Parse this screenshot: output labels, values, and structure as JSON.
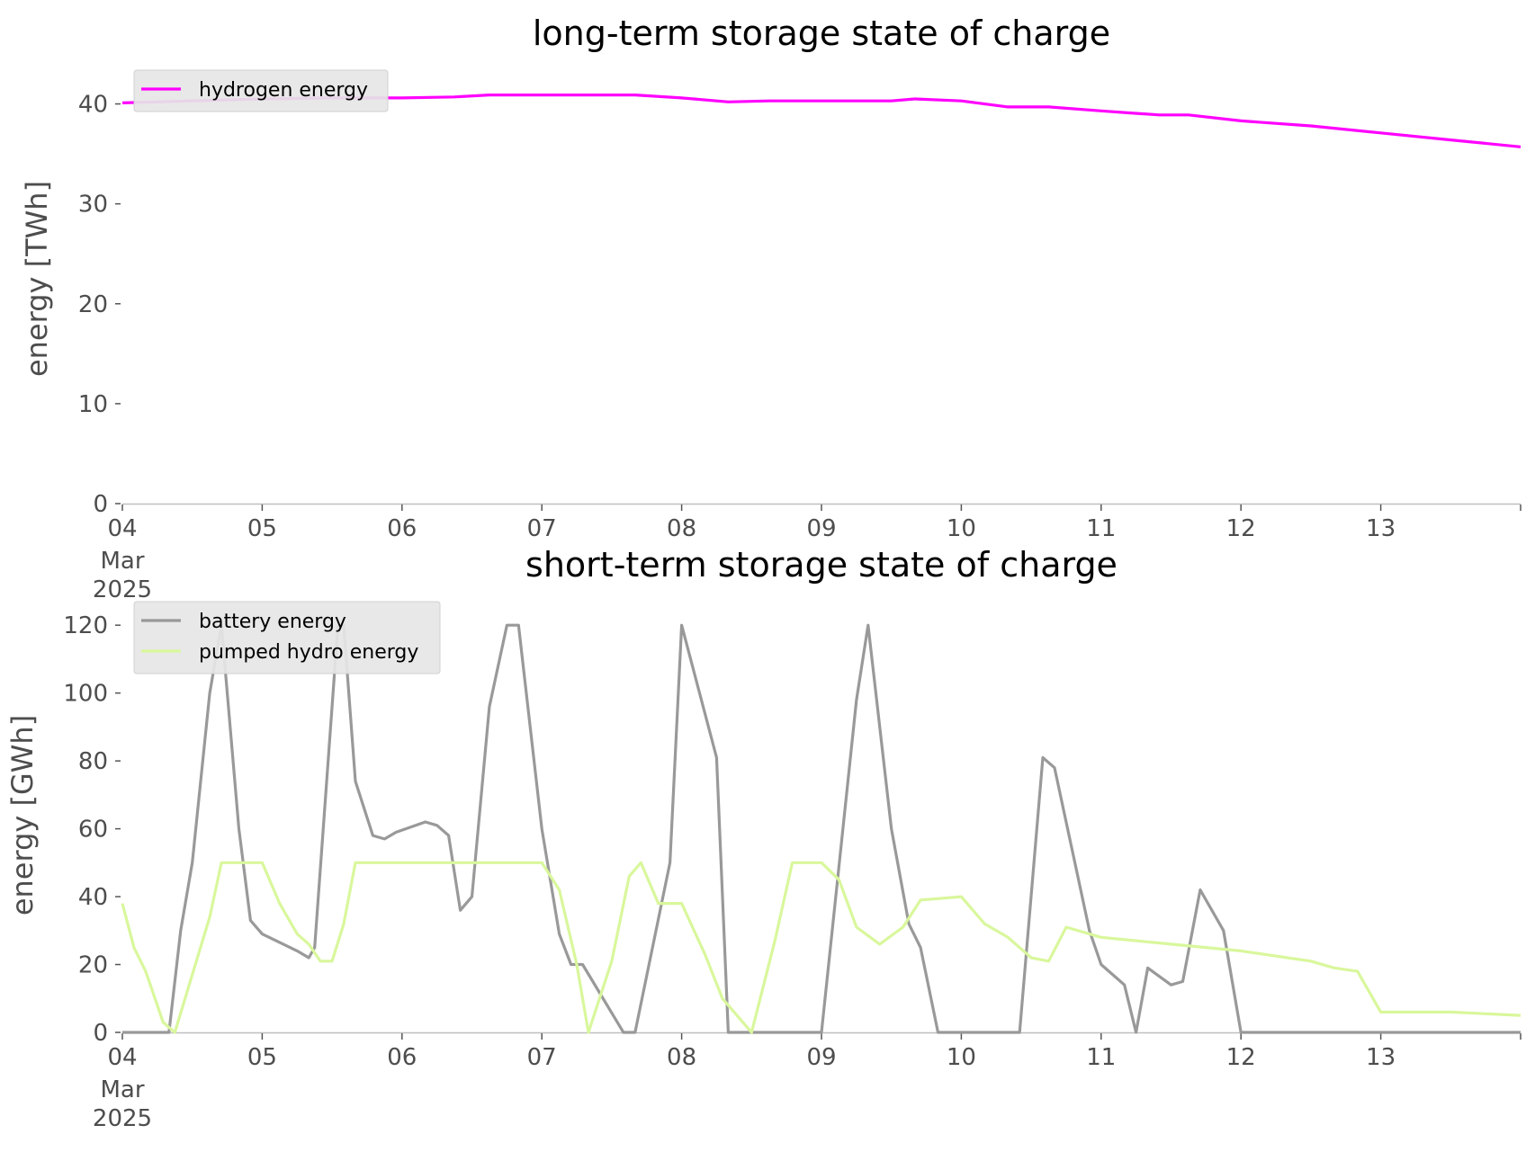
{
  "chart_data": [
    {
      "type": "line",
      "title": "long-term storage state of charge",
      "xlabel": "",
      "ylabel": "energy [TWh]",
      "ylim": [
        0,
        45
      ],
      "yticks": [
        0,
        10,
        20,
        30,
        40
      ],
      "xlim": [
        "2025-03-04",
        "2025-03-14"
      ],
      "xtick_labels": [
        "04",
        "05",
        "06",
        "07",
        "08",
        "09",
        "10",
        "11",
        "12",
        "13"
      ],
      "xtick_sublabels": [
        "Mar",
        "2025"
      ],
      "grid": false,
      "legend_position": "upper-left",
      "series": [
        {
          "name": "hydrogen energy",
          "color": "#ff00ff",
          "x": [
            "2025-03-04T00:00",
            "2025-03-04T12:00",
            "2025-03-05T00:00",
            "2025-03-05T12:00",
            "2025-03-06T00:00",
            "2025-03-06T09:00",
            "2025-03-06T15:00",
            "2025-03-07T00:00",
            "2025-03-07T12:00",
            "2025-03-07T16:00",
            "2025-03-08T00:00",
            "2025-03-08T08:00",
            "2025-03-08T15:00",
            "2025-03-09T00:00",
            "2025-03-09T12:00",
            "2025-03-09T16:00",
            "2025-03-10T00:00",
            "2025-03-10T08:00",
            "2025-03-10T15:00",
            "2025-03-11T00:00",
            "2025-03-11T05:00",
            "2025-03-11T10:00",
            "2025-03-11T15:00",
            "2025-03-12T00:00",
            "2025-03-12T12:00",
            "2025-03-13T00:00",
            "2025-03-13T12:00",
            "2025-03-14T00:00"
          ],
          "values": [
            40.1,
            40.3,
            40.5,
            40.6,
            40.6,
            40.7,
            40.9,
            40.9,
            40.9,
            40.9,
            40.6,
            40.2,
            40.3,
            40.3,
            40.3,
            40.5,
            40.3,
            39.7,
            39.7,
            39.3,
            39.1,
            38.9,
            38.9,
            38.3,
            37.8,
            37.1,
            36.4,
            35.7
          ]
        }
      ]
    },
    {
      "type": "line",
      "title": "short-term storage state of charge",
      "xlabel": "",
      "ylabel": "energy [GWh]",
      "ylim": [
        0,
        128
      ],
      "yticks": [
        0,
        20,
        40,
        60,
        80,
        100,
        120
      ],
      "xlim": [
        "2025-03-04",
        "2025-03-14"
      ],
      "xtick_labels": [
        "04",
        "05",
        "06",
        "07",
        "08",
        "09",
        "10",
        "11",
        "12",
        "13"
      ],
      "xtick_sublabels": [
        "Mar",
        "2025"
      ],
      "grid": false,
      "legend_position": "upper-left",
      "series": [
        {
          "name": "battery energy",
          "color": "#999999",
          "x": [
            "2025-03-04T00:00",
            "2025-03-04T06:00",
            "2025-03-04T08:00",
            "2025-03-04T10:00",
            "2025-03-04T12:00",
            "2025-03-04T15:00",
            "2025-03-04T17:00",
            "2025-03-04T20:00",
            "2025-03-04T22:00",
            "2025-03-05T00:00",
            "2025-03-05T06:00",
            "2025-03-05T08:00",
            "2025-03-05T09:00",
            "2025-03-05T13:00",
            "2025-03-05T14:00",
            "2025-03-05T16:00",
            "2025-03-05T19:00",
            "2025-03-05T21:00",
            "2025-03-05T23:00",
            "2025-03-06T04:00",
            "2025-03-06T06:00",
            "2025-03-06T08:00",
            "2025-03-06T10:00",
            "2025-03-06T12:00",
            "2025-03-06T15:00",
            "2025-03-06T18:00",
            "2025-03-06T20:00",
            "2025-03-07T00:00",
            "2025-03-07T03:00",
            "2025-03-07T05:00",
            "2025-03-07T07:00",
            "2025-03-07T14:00",
            "2025-03-07T16:00",
            "2025-03-07T22:00",
            "2025-03-08T00:00",
            "2025-03-08T06:00",
            "2025-03-08T08:00",
            "2025-03-08T14:00",
            "2025-03-08T16:00",
            "2025-03-08T19:00",
            "2025-03-09T00:00",
            "2025-03-09T06:00",
            "2025-03-09T08:00",
            "2025-03-09T12:00",
            "2025-03-09T15:00",
            "2025-03-09T17:00",
            "2025-03-09T20:00",
            "2025-03-10T00:00",
            "2025-03-10T06:00",
            "2025-03-10T10:00",
            "2025-03-10T14:00",
            "2025-03-10T16:00",
            "2025-03-10T22:00",
            "2025-03-11T00:00",
            "2025-03-11T04:00",
            "2025-03-11T06:00",
            "2025-03-11T08:00",
            "2025-03-11T12:00",
            "2025-03-11T14:00",
            "2025-03-11T17:00",
            "2025-03-11T21:00",
            "2025-03-12T00:00",
            "2025-03-14T00:00"
          ],
          "values": [
            0,
            0,
            0,
            30,
            50,
            100,
            120,
            60,
            33,
            29,
            24,
            22,
            25,
            120,
            120,
            74,
            58,
            57,
            59,
            62,
            61,
            58,
            36,
            40,
            96,
            120,
            120,
            60,
            29,
            20,
            20,
            0,
            0,
            50,
            120,
            81,
            0,
            0,
            0,
            0,
            0,
            98,
            120,
            60,
            32,
            25,
            0,
            0,
            0,
            0,
            81,
            78,
            30,
            20,
            14,
            0,
            19,
            14,
            15,
            42,
            30,
            0,
            0
          ]
        },
        {
          "name": "pumped hydro energy",
          "color": "#d9f79c",
          "x": [
            "2025-03-04T00:00",
            "2025-03-04T02:00",
            "2025-03-04T04:00",
            "2025-03-04T07:00",
            "2025-03-04T09:00",
            "2025-03-04T12:00",
            "2025-03-04T15:00",
            "2025-03-04T17:00",
            "2025-03-05T00:00",
            "2025-03-05T03:00",
            "2025-03-05T06:00",
            "2025-03-05T08:00",
            "2025-03-05T10:00",
            "2025-03-05T12:00",
            "2025-03-05T14:00",
            "2025-03-05T16:00",
            "2025-03-06T00:00",
            "2025-03-06T12:00",
            "2025-03-07T00:00",
            "2025-03-07T03:00",
            "2025-03-07T06:00",
            "2025-03-07T08:00",
            "2025-03-07T12:00",
            "2025-03-07T15:00",
            "2025-03-07T17:00",
            "2025-03-07T20:00",
            "2025-03-08T00:00",
            "2025-03-08T04:00",
            "2025-03-08T07:00",
            "2025-03-08T12:00",
            "2025-03-08T16:00",
            "2025-03-08T19:00",
            "2025-03-09T00:00",
            "2025-03-09T03:00",
            "2025-03-09T06:00",
            "2025-03-09T10:00",
            "2025-03-09T14:00",
            "2025-03-09T17:00",
            "2025-03-10T00:00",
            "2025-03-10T04:00",
            "2025-03-10T08:00",
            "2025-03-10T12:00",
            "2025-03-10T15:00",
            "2025-03-10T18:00",
            "2025-03-11T00:00",
            "2025-03-11T12:00",
            "2025-03-12T00:00",
            "2025-03-12T12:00",
            "2025-03-12T16:00",
            "2025-03-12T20:00",
            "2025-03-13T00:00",
            "2025-03-13T12:00",
            "2025-03-14T00:00"
          ],
          "values": [
            38,
            25,
            18,
            3,
            0,
            17,
            34,
            50,
            50,
            38,
            29,
            26,
            21,
            21,
            32,
            50,
            50,
            50,
            50,
            42,
            20,
            0,
            21,
            46,
            50,
            38,
            38,
            23,
            10,
            0,
            27,
            50,
            50,
            45,
            31,
            26,
            31,
            39,
            40,
            32,
            28,
            22,
            21,
            31,
            28,
            26,
            24,
            21,
            19,
            18,
            6,
            6,
            5
          ]
        }
      ]
    }
  ]
}
